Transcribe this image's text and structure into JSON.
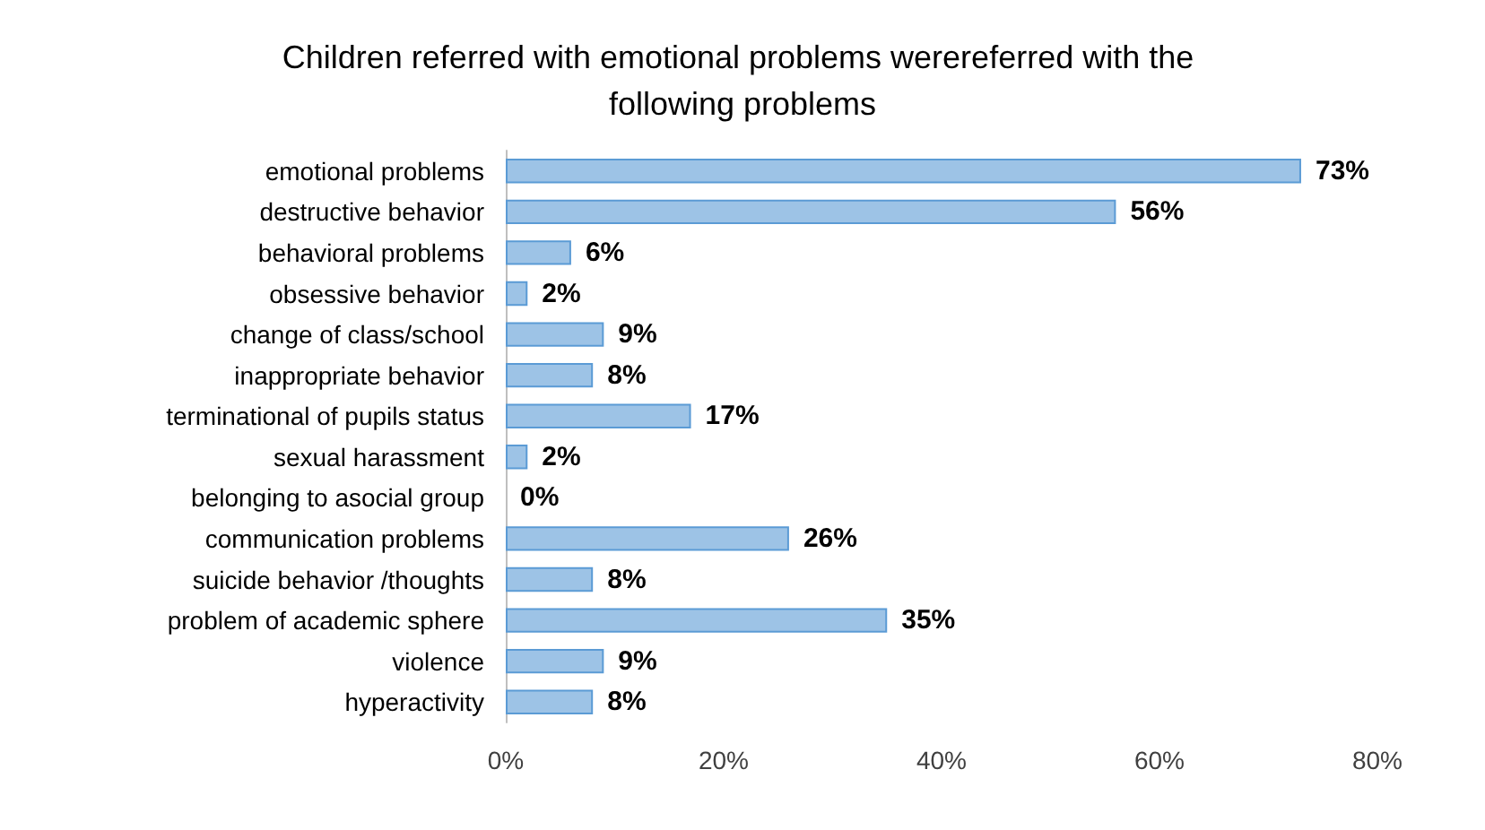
{
  "chart_data": {
    "type": "bar",
    "orientation": "horizontal",
    "title": "Children referred with emotional problems werereferred with the following problems",
    "categories": [
      "emotional problems",
      "destructive behavior",
      "behavioral problems",
      "obsessive behavior",
      "change of class/school",
      "inappropriate behavior",
      "terminational of pupils status",
      "sexual harassment",
      "belonging to asocial group",
      "communication problems",
      "suicide behavior /thoughts",
      "problem of academic sphere",
      "violence",
      "hyperactivity"
    ],
    "values": [
      73,
      56,
      6,
      2,
      9,
      8,
      17,
      2,
      0,
      26,
      8,
      35,
      9,
      8
    ],
    "value_labels": [
      "73%",
      "56%",
      "6%",
      "2%",
      "9%",
      "8%",
      "17%",
      "2%",
      "0%",
      "26%",
      "8%",
      "35%",
      "9%",
      "8%"
    ],
    "color": "#9dc3e6",
    "xlim": [
      0,
      80
    ],
    "xticks": [
      {
        "value": 0,
        "label": "0%"
      },
      {
        "value": 20,
        "label": "20%"
      },
      {
        "value": 40,
        "label": "40%"
      },
      {
        "value": 60,
        "label": "60%"
      },
      {
        "value": 80,
        "label": "80%"
      }
    ],
    "grid": false
  }
}
